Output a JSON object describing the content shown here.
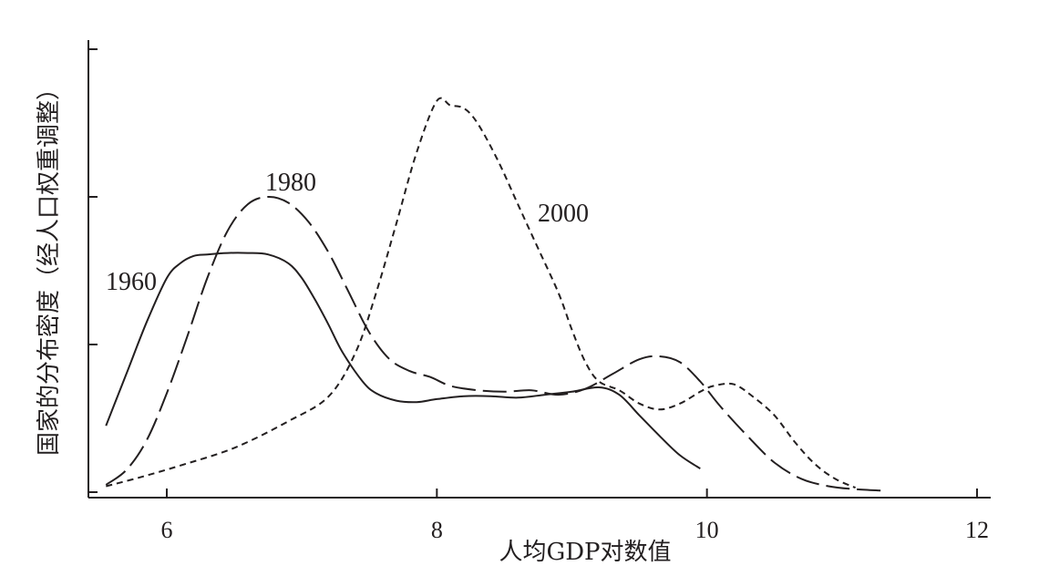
{
  "chart_data": {
    "type": "line",
    "xlabel": "人均GDP对数值",
    "ylabel": "国家的分布密度（经人口权重调整）",
    "xlim": [
      5.4,
      12.2
    ],
    "ylim": [
      0,
      3
    ],
    "xticks": [
      6,
      8,
      10,
      12
    ],
    "xtick_labels": [
      "6",
      "8",
      "10",
      "12"
    ],
    "yticks": [
      0,
      1,
      2,
      3
    ],
    "grid": false,
    "series": [
      {
        "name": "1960",
        "style": "solid",
        "x": [
          5.55,
          5.7,
          5.85,
          6.0,
          6.1,
          6.2,
          6.3,
          6.45,
          6.6,
          6.75,
          6.9,
          7.0,
          7.1,
          7.2,
          7.3,
          7.45,
          7.55,
          7.7,
          7.85,
          8.0,
          8.2,
          8.4,
          8.6,
          8.8,
          9.0,
          9.2,
          9.35,
          9.5,
          9.65,
          9.8,
          9.95
        ],
        "y": [
          0.45,
          0.8,
          1.15,
          1.45,
          1.55,
          1.6,
          1.61,
          1.62,
          1.62,
          1.61,
          1.55,
          1.45,
          1.3,
          1.13,
          0.95,
          0.75,
          0.67,
          0.62,
          0.61,
          0.63,
          0.65,
          0.65,
          0.64,
          0.66,
          0.68,
          0.71,
          0.66,
          0.52,
          0.38,
          0.25,
          0.16
        ]
      },
      {
        "name": "1980",
        "style": "dashed",
        "x": [
          5.55,
          5.7,
          5.85,
          6.0,
          6.15,
          6.3,
          6.45,
          6.6,
          6.75,
          6.9,
          7.05,
          7.2,
          7.35,
          7.5,
          7.65,
          7.8,
          7.95,
          8.1,
          8.3,
          8.5,
          8.7,
          8.9,
          9.1,
          9.3,
          9.5,
          9.65,
          9.8,
          9.95,
          10.1,
          10.3,
          10.5,
          10.7,
          10.9,
          11.1,
          11.3
        ],
        "y": [
          0.05,
          0.15,
          0.35,
          0.67,
          1.05,
          1.45,
          1.77,
          1.95,
          2.0,
          1.96,
          1.83,
          1.62,
          1.35,
          1.08,
          0.9,
          0.82,
          0.78,
          0.72,
          0.69,
          0.68,
          0.69,
          0.66,
          0.7,
          0.8,
          0.9,
          0.92,
          0.88,
          0.75,
          0.58,
          0.38,
          0.2,
          0.09,
          0.04,
          0.02,
          0.01
        ]
      },
      {
        "name": "2000",
        "style": "dotted",
        "x": [
          5.55,
          5.8,
          6.1,
          6.5,
          6.9,
          7.2,
          7.4,
          7.55,
          7.7,
          7.85,
          8.0,
          8.1,
          8.2,
          8.3,
          8.45,
          8.6,
          8.75,
          8.9,
          9.0,
          9.1,
          9.2,
          9.35,
          9.5,
          9.65,
          9.8,
          9.95,
          10.05,
          10.2,
          10.35,
          10.5,
          10.65,
          10.8,
          10.95,
          11.1
        ],
        "y": [
          0.04,
          0.1,
          0.18,
          0.3,
          0.48,
          0.65,
          0.95,
          1.35,
          1.82,
          2.3,
          2.65,
          2.62,
          2.6,
          2.5,
          2.25,
          1.95,
          1.65,
          1.35,
          1.1,
          0.88,
          0.75,
          0.69,
          0.6,
          0.56,
          0.6,
          0.68,
          0.72,
          0.73,
          0.64,
          0.52,
          0.34,
          0.19,
          0.09,
          0.03
        ]
      }
    ]
  }
}
